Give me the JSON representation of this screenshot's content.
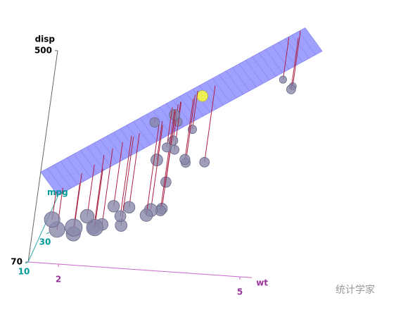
{
  "chart_data": {
    "type": "scatter3d",
    "x_label": "wt",
    "y_label": "mpg",
    "z_label": "disp",
    "xticks": [
      2,
      5
    ],
    "yticks": [
      10,
      30
    ],
    "zticks": [
      70,
      500
    ],
    "xlim": [
      1.5,
      5.5
    ],
    "ylim": [
      10,
      34
    ],
    "zlim": [
      70,
      500
    ],
    "point_color": "#eeee55",
    "below_color": "#8888aa",
    "plane_color": "#8080ff",
    "above_line_color": "#33cc55",
    "below_line_color": "#aa2244",
    "plane": {
      "intercept": 180,
      "wt": 82,
      "mpg": -5
    },
    "points": {
      "wt": [
        2.62,
        2.875,
        2.32,
        3.215,
        3.44,
        3.46,
        3.57,
        3.19,
        3.15,
        3.44,
        3.44,
        4.07,
        3.73,
        3.78,
        5.25,
        5.424,
        5.345,
        2.2,
        1.615,
        1.835,
        2.465,
        3.52,
        3.435,
        3.84,
        3.845,
        1.935,
        2.14,
        1.513,
        3.17,
        2.77,
        3.57,
        2.78
      ],
      "mpg": [
        21,
        21,
        22.8,
        21.4,
        18.7,
        18.1,
        14.3,
        24.4,
        22.8,
        19.2,
        17.8,
        16.4,
        17.3,
        15.2,
        10.4,
        10.4,
        14.7,
        32.4,
        30.4,
        33.9,
        21.5,
        15.5,
        15.2,
        13.3,
        19.2,
        27.3,
        26,
        30.4,
        15.8,
        19.7,
        15,
        21.4
      ],
      "disp": [
        160,
        160,
        108,
        258,
        360,
        225,
        360,
        146.7,
        140.8,
        167.6,
        167.6,
        275.8,
        275.8,
        275.8,
        472,
        460,
        440,
        78.7,
        75.7,
        71.1,
        120.1,
        318,
        304,
        350,
        400,
        79,
        120.3,
        95.1,
        351,
        145,
        301,
        121
      ]
    }
  },
  "watermark": "统计学家"
}
